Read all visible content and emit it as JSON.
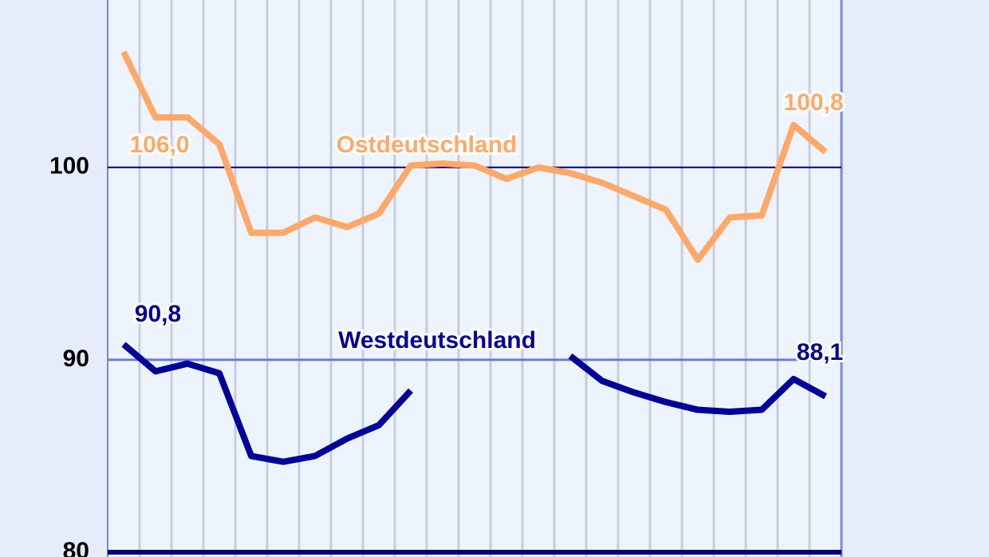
{
  "chart_data": {
    "type": "line",
    "categories": [
      null,
      null,
      null,
      null,
      null,
      null,
      null,
      null,
      null,
      null,
      null,
      null,
      null,
      null,
      null,
      null,
      null,
      null,
      null,
      null,
      null,
      null,
      null
    ],
    "series": [
      {
        "name": "Ostdeutschland",
        "color": "#ffa868",
        "values": [
          106.0,
          102.6,
          102.6,
          101.2,
          96.6,
          96.6,
          97.4,
          96.9,
          97.6,
          100.1,
          100.2,
          100.1,
          99.4,
          100.0,
          99.7,
          99.2,
          98.5,
          97.8,
          95.2,
          97.4,
          97.5,
          102.2,
          100.8
        ],
        "value_labels": [
          "106,0",
          null,
          null,
          null,
          null,
          null,
          null,
          null,
          null,
          null,
          null,
          null,
          null,
          null,
          null,
          null,
          null,
          null,
          null,
          null,
          null,
          null,
          "100,8"
        ]
      },
      {
        "name": "Westdeutschland",
        "color": "#00009a",
        "values": [
          90.8,
          89.4,
          89.8,
          89.3,
          85.0,
          84.7,
          85.0,
          85.9,
          86.6,
          88.4,
          null,
          null,
          null,
          null,
          90.2,
          88.9,
          88.3,
          87.8,
          87.4,
          87.3,
          87.4,
          89.0,
          88.1
        ],
        "value_labels": [
          "90,8",
          null,
          null,
          null,
          null,
          null,
          null,
          null,
          null,
          null,
          null,
          null,
          null,
          null,
          null,
          null,
          null,
          null,
          null,
          null,
          null,
          null,
          "88,1"
        ]
      }
    ],
    "ylim": [
      79.75,
      108.7
    ],
    "yticks": [
      80,
      90,
      100
    ],
    "grid": true
  }
}
